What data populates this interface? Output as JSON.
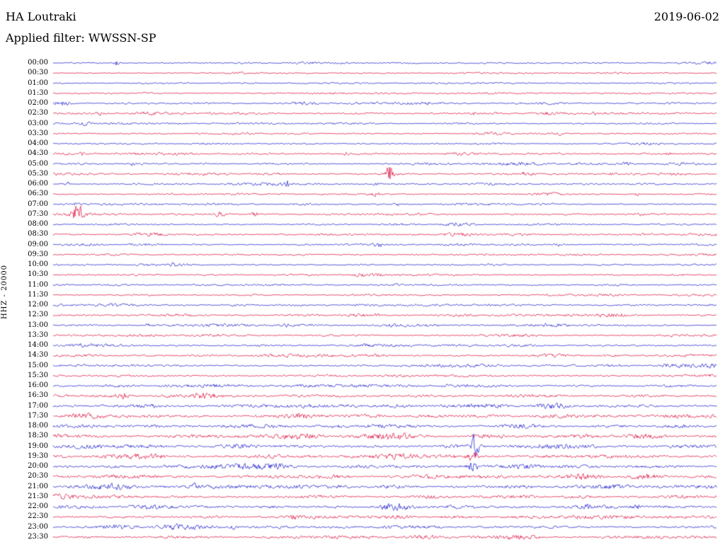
{
  "header": {
    "station": "HA Loutraki",
    "date": "2019-06-02",
    "filter_label": "Applied filter: WWSSN-SP"
  },
  "axis": {
    "channel_label": "HHZ - 20000"
  },
  "chart_data": {
    "type": "line",
    "variant": "helicorder-seismogram",
    "title": "HA Loutraki",
    "date": "2019-06-02",
    "filter": "WWSSN-SP",
    "channel": "HHZ",
    "scale": 20000,
    "minutes_per_row": 30,
    "colors": {
      "blue": "#2222cc",
      "red": "#dc1441"
    },
    "rows": [
      {
        "label": "00:00",
        "color": "blue",
        "noise_amp": 1.2
      },
      {
        "label": "00:30",
        "color": "red",
        "noise_amp": 1.3
      },
      {
        "label": "01:00",
        "color": "blue",
        "noise_amp": 1.1
      },
      {
        "label": "01:30",
        "color": "red",
        "noise_amp": 1.2
      },
      {
        "label": "02:00",
        "color": "blue",
        "noise_amp": 1.6
      },
      {
        "label": "02:30",
        "color": "red",
        "noise_amp": 1.6
      },
      {
        "label": "03:00",
        "color": "blue",
        "noise_amp": 1.4
      },
      {
        "label": "03:30",
        "color": "red",
        "noise_amp": 1.3
      },
      {
        "label": "04:00",
        "color": "blue",
        "noise_amp": 1.2
      },
      {
        "label": "04:30",
        "color": "red",
        "noise_amp": 1.4
      },
      {
        "label": "05:00",
        "color": "blue",
        "noise_amp": 1.5
      },
      {
        "label": "05:30",
        "color": "red",
        "noise_amp": 1.5
      },
      {
        "label": "06:00",
        "color": "blue",
        "noise_amp": 1.5
      },
      {
        "label": "06:30",
        "color": "red",
        "noise_amp": 1.4
      },
      {
        "label": "07:00",
        "color": "blue",
        "noise_amp": 1.5
      },
      {
        "label": "07:30",
        "color": "red",
        "noise_amp": 1.6
      },
      {
        "label": "08:00",
        "color": "blue",
        "noise_amp": 1.5
      },
      {
        "label": "08:30",
        "color": "red",
        "noise_amp": 1.6
      },
      {
        "label": "09:00",
        "color": "blue",
        "noise_amp": 1.4
      },
      {
        "label": "09:30",
        "color": "red",
        "noise_amp": 1.4
      },
      {
        "label": "10:00",
        "color": "blue",
        "noise_amp": 1.3
      },
      {
        "label": "10:30",
        "color": "red",
        "noise_amp": 1.4
      },
      {
        "label": "11:00",
        "color": "blue",
        "noise_amp": 1.4
      },
      {
        "label": "11:30",
        "color": "red",
        "noise_amp": 1.5
      },
      {
        "label": "12:00",
        "color": "blue",
        "noise_amp": 1.5
      },
      {
        "label": "12:30",
        "color": "red",
        "noise_amp": 1.7
      },
      {
        "label": "13:00",
        "color": "blue",
        "noise_amp": 1.6
      },
      {
        "label": "13:30",
        "color": "red",
        "noise_amp": 1.6
      },
      {
        "label": "14:00",
        "color": "blue",
        "noise_amp": 1.7
      },
      {
        "label": "14:30",
        "color": "red",
        "noise_amp": 1.8
      },
      {
        "label": "15:00",
        "color": "blue",
        "noise_amp": 1.8
      },
      {
        "label": "15:30",
        "color": "red",
        "noise_amp": 1.9
      },
      {
        "label": "16:00",
        "color": "blue",
        "noise_amp": 2.0
      },
      {
        "label": "16:30",
        "color": "red",
        "noise_amp": 2.0
      },
      {
        "label": "17:00",
        "color": "blue",
        "noise_amp": 2.6
      },
      {
        "label": "17:30",
        "color": "red",
        "noise_amp": 2.6
      },
      {
        "label": "18:00",
        "color": "blue",
        "noise_amp": 2.6
      },
      {
        "label": "18:30",
        "color": "red",
        "noise_amp": 2.8
      },
      {
        "label": "19:00",
        "color": "blue",
        "noise_amp": 2.8
      },
      {
        "label": "19:30",
        "color": "red",
        "noise_amp": 2.8
      },
      {
        "label": "20:00",
        "color": "blue",
        "noise_amp": 2.8
      },
      {
        "label": "20:30",
        "color": "red",
        "noise_amp": 2.7
      },
      {
        "label": "21:00",
        "color": "blue",
        "noise_amp": 2.7
      },
      {
        "label": "21:30",
        "color": "red",
        "noise_amp": 2.6
      },
      {
        "label": "22:00",
        "color": "blue",
        "noise_amp": 2.6
      },
      {
        "label": "22:30",
        "color": "red",
        "noise_amp": 2.5
      },
      {
        "label": "23:00",
        "color": "blue",
        "noise_amp": 2.3
      },
      {
        "label": "23:30",
        "color": "red",
        "noise_amp": 2.2
      }
    ],
    "events": [
      {
        "row": 0,
        "frac": 0.096,
        "amp": 5.0,
        "sigma": 4,
        "approx_time": "00:02"
      },
      {
        "row": 4,
        "frac": 0.016,
        "amp": 2.5,
        "sigma": 5,
        "approx_time": "02:00"
      },
      {
        "row": 5,
        "frac": 0.069,
        "amp": 2.2,
        "sigma": 5,
        "approx_time": "02:32"
      },
      {
        "row": 5,
        "frac": 0.24,
        "amp": 2.0,
        "sigma": 6,
        "approx_time": "02:37"
      },
      {
        "row": 5,
        "frac": 0.635,
        "amp": 2.0,
        "sigma": 5,
        "approx_time": "02:49"
      },
      {
        "row": 5,
        "frac": 0.816,
        "amp": 2.2,
        "sigma": 5,
        "approx_time": "02:54"
      },
      {
        "row": 6,
        "frac": 0.048,
        "amp": 2.2,
        "sigma": 8,
        "approx_time": "03:01"
      },
      {
        "row": 7,
        "frac": 0.763,
        "amp": 2.0,
        "sigma": 5,
        "approx_time": "03:52"
      },
      {
        "row": 9,
        "frac": 0.043,
        "amp": 2.2,
        "sigma": 5,
        "approx_time": "04:31"
      },
      {
        "row": 9,
        "frac": 0.443,
        "amp": 2.0,
        "sigma": 5,
        "approx_time": "04:43"
      },
      {
        "row": 9,
        "frac": 0.928,
        "amp": 2.2,
        "sigma": 5,
        "approx_time": "04:57"
      },
      {
        "row": 10,
        "frac": 0.117,
        "amp": 2.5,
        "sigma": 5,
        "approx_time": "05:03"
      },
      {
        "row": 10,
        "frac": 0.864,
        "amp": 2.0,
        "sigma": 5,
        "approx_time": "05:25"
      },
      {
        "row": 11,
        "frac": 0.507,
        "amp": 9.0,
        "sigma": 6,
        "approx_time": "05:45"
      },
      {
        "row": 11,
        "frac": 0.715,
        "amp": 2.5,
        "sigma": 7,
        "approx_time": "05:51"
      },
      {
        "row": 11,
        "frac": 0.843,
        "amp": 2.0,
        "sigma": 6,
        "approx_time": "05:55"
      },
      {
        "row": 12,
        "frac": 0.021,
        "amp": 4.0,
        "sigma": 4,
        "approx_time": "06:00"
      },
      {
        "row": 12,
        "frac": 0.352,
        "amp": 5.5,
        "sigma": 4,
        "approx_time": "06:10"
      },
      {
        "row": 12,
        "frac": 0.486,
        "amp": 2.5,
        "sigma": 5,
        "approx_time": "06:14"
      },
      {
        "row": 13,
        "frac": 0.486,
        "amp": 3.0,
        "sigma": 6,
        "approx_time": "06:44"
      },
      {
        "row": 13,
        "frac": 0.88,
        "amp": 2.2,
        "sigma": 5,
        "approx_time": "06:56"
      },
      {
        "row": 14,
        "frac": 0.037,
        "amp": 3.0,
        "sigma": 5,
        "approx_time": "07:01"
      },
      {
        "row": 14,
        "frac": 0.518,
        "amp": 2.2,
        "sigma": 5,
        "approx_time": "07:15"
      },
      {
        "row": 15,
        "frac": 0.037,
        "amp": 12.0,
        "sigma": 8,
        "approx_time": "07:31"
      },
      {
        "row": 15,
        "frac": 0.251,
        "amp": 3.2,
        "sigma": 9,
        "approx_time": "07:37"
      },
      {
        "row": 15,
        "frac": 0.304,
        "amp": 3.0,
        "sigma": 7,
        "approx_time": "07:39"
      },
      {
        "row": 18,
        "frac": 0.491,
        "amp": 3.5,
        "sigma": 8,
        "approx_time": "09:14"
      },
      {
        "row": 18,
        "frac": 0.763,
        "amp": 2.2,
        "sigma": 6,
        "approx_time": "09:22"
      },
      {
        "row": 20,
        "frac": 0.181,
        "amp": 2.5,
        "sigma": 4,
        "approx_time": "10:05"
      },
      {
        "row": 26,
        "frac": 0.144,
        "amp": 3.5,
        "sigma": 5,
        "approx_time": "13:04"
      },
      {
        "row": 26,
        "frac": 0.352,
        "amp": 3.0,
        "sigma": 5,
        "approx_time": "13:10"
      },
      {
        "row": 29,
        "frac": 0.491,
        "amp": 2.5,
        "sigma": 7,
        "approx_time": "14:44"
      },
      {
        "row": 33,
        "frac": 0.107,
        "amp": 3.2,
        "sigma": 6,
        "approx_time": "16:33"
      },
      {
        "row": 33,
        "frac": 0.224,
        "amp": 2.8,
        "sigma": 12,
        "approx_time": "16:36"
      },
      {
        "row": 38,
        "frac": 0.635,
        "amp": 13.0,
        "sigma": 7,
        "approx_time": "19:19"
      },
      {
        "row": 39,
        "frac": 0.633,
        "amp": 5.0,
        "sigma": 7,
        "approx_time": "19:49"
      },
      {
        "row": 40,
        "frac": 0.633,
        "amp": 7.0,
        "sigma": 7,
        "approx_time": "20:19"
      },
      {
        "row": 42,
        "frac": 0.213,
        "amp": 4.0,
        "sigma": 5,
        "approx_time": "21:06"
      },
      {
        "row": 44,
        "frac": 0.806,
        "amp": 3.0,
        "sigma": 5,
        "approx_time": "22:24"
      },
      {
        "row": 44,
        "frac": 0.88,
        "amp": 3.5,
        "sigma": 5,
        "approx_time": "22:26"
      },
      {
        "row": 45,
        "frac": 0.363,
        "amp": 3.0,
        "sigma": 6,
        "approx_time": "22:40"
      },
      {
        "row": 46,
        "frac": 0.272,
        "amp": 3.0,
        "sigma": 6,
        "approx_time": "23:08"
      }
    ]
  },
  "render": {
    "seed": 1234
  }
}
